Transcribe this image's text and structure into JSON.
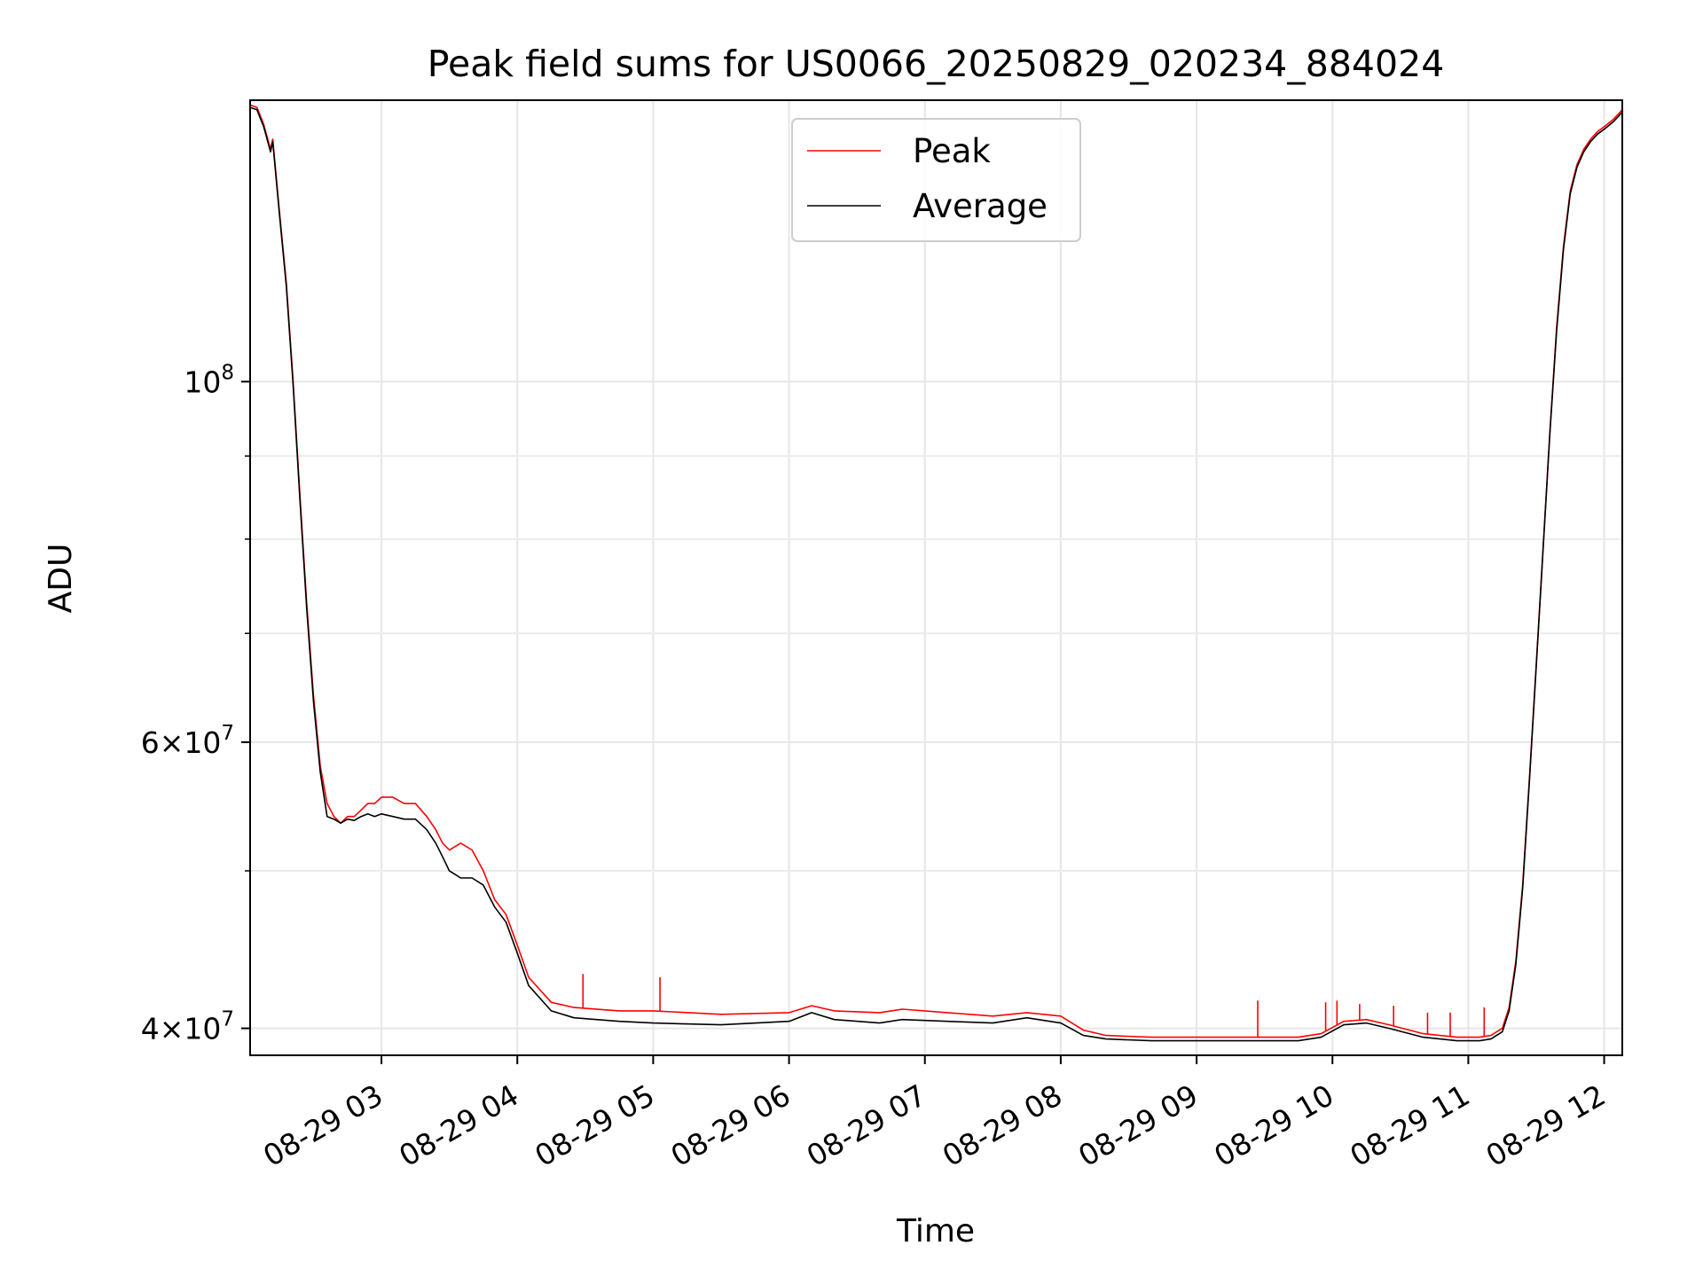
{
  "chart_data": {
    "type": "line",
    "title": "Peak field sums for US0066_20250829_020234_884024",
    "xlabel": "Time",
    "ylabel": "ADU",
    "yscale": "log",
    "grid": true,
    "legend_position": "top-center",
    "x_ticks": [
      "08-29 03",
      "08-29 04",
      "08-29 05",
      "08-29 06",
      "08-29 07",
      "08-29 08",
      "08-29 09",
      "08-29 10",
      "08-29 11",
      "08-29 12"
    ],
    "y_ticks": [
      {
        "value": 40000000,
        "base": "4×10",
        "exp": "7"
      },
      {
        "value": 60000000,
        "base": "6×10",
        "exp": "7"
      },
      {
        "value": 100000000,
        "base": "10",
        "exp": "8"
      }
    ],
    "xlim": [
      "2025-08-29 02:02",
      "2025-08-29 12:08"
    ],
    "ylim": [
      38500000,
      149000000
    ],
    "series": [
      {
        "name": "Peak",
        "color": "#ff0000",
        "x": [
          "2025-08-29 02:02",
          "2025-08-29 02:05",
          "2025-08-29 02:08",
          "2025-08-29 02:11",
          "2025-08-29 02:12",
          "2025-08-29 02:15",
          "2025-08-29 02:18",
          "2025-08-29 02:21",
          "2025-08-29 02:24",
          "2025-08-29 02:27",
          "2025-08-29 02:30",
          "2025-08-29 02:33",
          "2025-08-29 02:36",
          "2025-08-29 02:39",
          "2025-08-29 02:42",
          "2025-08-29 02:45",
          "2025-08-29 02:48",
          "2025-08-29 02:51",
          "2025-08-29 02:54",
          "2025-08-29 02:57",
          "2025-08-29 03:00",
          "2025-08-29 03:05",
          "2025-08-29 03:10",
          "2025-08-29 03:15",
          "2025-08-29 03:20",
          "2025-08-29 03:24",
          "2025-08-29 03:27",
          "2025-08-29 03:30",
          "2025-08-29 03:35",
          "2025-08-29 03:40",
          "2025-08-29 03:45",
          "2025-08-29 03:50",
          "2025-08-29 03:55",
          "2025-08-29 04:00",
          "2025-08-29 04:05",
          "2025-08-29 04:15",
          "2025-08-29 04:25",
          "2025-08-29 04:45",
          "2025-08-29 05:00",
          "2025-08-29 05:30",
          "2025-08-29 06:00",
          "2025-08-29 06:10",
          "2025-08-29 06:20",
          "2025-08-29 06:40",
          "2025-08-29 06:50",
          "2025-08-29 07:10",
          "2025-08-29 07:30",
          "2025-08-29 07:45",
          "2025-08-29 08:00",
          "2025-08-29 08:10",
          "2025-08-29 08:20",
          "2025-08-29 08:40",
          "2025-08-29 09:00",
          "2025-08-29 09:30",
          "2025-08-29 09:45",
          "2025-08-29 09:55",
          "2025-08-29 10:05",
          "2025-08-29 10:15",
          "2025-08-29 10:25",
          "2025-08-29 10:40",
          "2025-08-29 10:55",
          "2025-08-29 11:05",
          "2025-08-29 11:10",
          "2025-08-29 11:15",
          "2025-08-29 11:18",
          "2025-08-29 11:21",
          "2025-08-29 11:24",
          "2025-08-29 11:27",
          "2025-08-29 11:30",
          "2025-08-29 11:33",
          "2025-08-29 11:36",
          "2025-08-29 11:39",
          "2025-08-29 11:42",
          "2025-08-29 11:45",
          "2025-08-29 11:48",
          "2025-08-29 11:51",
          "2025-08-29 11:54",
          "2025-08-29 11:57",
          "2025-08-29 12:00",
          "2025-08-29 12:04",
          "2025-08-29 12:08"
        ],
        "y": [
          148000000,
          147500000,
          144000000,
          139000000,
          141000000,
          127000000,
          115000000,
          100000000,
          85000000,
          73000000,
          64000000,
          58000000,
          55000000,
          54000000,
          53500000,
          54000000,
          54000000,
          54500000,
          55000000,
          55000000,
          55500000,
          55500000,
          55000000,
          55000000,
          54000000,
          53000000,
          52000000,
          51500000,
          52000000,
          51500000,
          50000000,
          48000000,
          47000000,
          45000000,
          43000000,
          41500000,
          41200000,
          41000000,
          41000000,
          40800000,
          40900000,
          41300000,
          41000000,
          40900000,
          41100000,
          40900000,
          40700000,
          40900000,
          40700000,
          39900000,
          39600000,
          39500000,
          39500000,
          39500000,
          39500000,
          39700000,
          40400000,
          40500000,
          40200000,
          39700000,
          39500000,
          39500000,
          39600000,
          40000000,
          41200000,
          44000000,
          49000000,
          57000000,
          67000000,
          79000000,
          93000000,
          108000000,
          121000000,
          131000000,
          136000000,
          139000000,
          141000000,
          142500000,
          143500000,
          145000000,
          147000000
        ],
        "spikes": [
          {
            "x": "2025-08-29 04:29",
            "y": 43200000
          },
          {
            "x": "2025-08-29 05:03",
            "y": 43000000
          },
          {
            "x": "2025-08-29 09:27",
            "y": 41600000
          },
          {
            "x": "2025-08-29 09:57",
            "y": 41500000
          },
          {
            "x": "2025-08-29 10:02",
            "y": 41600000
          },
          {
            "x": "2025-08-29 10:12",
            "y": 41400000
          },
          {
            "x": "2025-08-29 10:27",
            "y": 41300000
          },
          {
            "x": "2025-08-29 10:42",
            "y": 40900000
          },
          {
            "x": "2025-08-29 10:52",
            "y": 40900000
          },
          {
            "x": "2025-08-29 11:07",
            "y": 41200000
          }
        ]
      },
      {
        "name": "Average",
        "color": "#000000",
        "x": [
          "2025-08-29 02:02",
          "2025-08-29 02:05",
          "2025-08-29 02:08",
          "2025-08-29 02:11",
          "2025-08-29 02:12",
          "2025-08-29 02:15",
          "2025-08-29 02:18",
          "2025-08-29 02:21",
          "2025-08-29 02:24",
          "2025-08-29 02:27",
          "2025-08-29 02:30",
          "2025-08-29 02:33",
          "2025-08-29 02:36",
          "2025-08-29 02:39",
          "2025-08-29 02:42",
          "2025-08-29 02:45",
          "2025-08-29 02:48",
          "2025-08-29 02:51",
          "2025-08-29 02:54",
          "2025-08-29 02:57",
          "2025-08-29 03:00",
          "2025-08-29 03:05",
          "2025-08-29 03:10",
          "2025-08-29 03:15",
          "2025-08-29 03:20",
          "2025-08-29 03:24",
          "2025-08-29 03:27",
          "2025-08-29 03:30",
          "2025-08-29 03:35",
          "2025-08-29 03:40",
          "2025-08-29 03:45",
          "2025-08-29 03:50",
          "2025-08-29 03:55",
          "2025-08-29 04:00",
          "2025-08-29 04:05",
          "2025-08-29 04:15",
          "2025-08-29 04:25",
          "2025-08-29 04:45",
          "2025-08-29 05:00",
          "2025-08-29 05:30",
          "2025-08-29 06:00",
          "2025-08-29 06:10",
          "2025-08-29 06:20",
          "2025-08-29 06:40",
          "2025-08-29 06:50",
          "2025-08-29 07:10",
          "2025-08-29 07:30",
          "2025-08-29 07:45",
          "2025-08-29 08:00",
          "2025-08-29 08:10",
          "2025-08-29 08:20",
          "2025-08-29 08:40",
          "2025-08-29 09:00",
          "2025-08-29 09:30",
          "2025-08-29 09:45",
          "2025-08-29 09:55",
          "2025-08-29 10:05",
          "2025-08-29 10:15",
          "2025-08-29 10:25",
          "2025-08-29 10:40",
          "2025-08-29 10:55",
          "2025-08-29 11:05",
          "2025-08-29 11:10",
          "2025-08-29 11:15",
          "2025-08-29 11:18",
          "2025-08-29 11:21",
          "2025-08-29 11:24",
          "2025-08-29 11:27",
          "2025-08-29 11:30",
          "2025-08-29 11:33",
          "2025-08-29 11:36",
          "2025-08-29 11:39",
          "2025-08-29 11:42",
          "2025-08-29 11:45",
          "2025-08-29 11:48",
          "2025-08-29 11:51",
          "2025-08-29 11:54",
          "2025-08-29 11:57",
          "2025-08-29 12:00",
          "2025-08-29 12:04",
          "2025-08-29 12:08"
        ],
        "y": [
          147500000,
          147000000,
          143500000,
          138500000,
          140500000,
          126500000,
          114500000,
          99500000,
          84500000,
          72500000,
          63500000,
          57500000,
          54000000,
          53800000,
          53500000,
          53800000,
          53700000,
          54000000,
          54200000,
          54000000,
          54200000,
          54000000,
          53800000,
          53800000,
          53000000,
          52000000,
          51000000,
          50000000,
          49500000,
          49500000,
          49000000,
          47500000,
          46500000,
          44500000,
          42500000,
          41000000,
          40600000,
          40400000,
          40300000,
          40200000,
          40400000,
          40900000,
          40500000,
          40300000,
          40500000,
          40400000,
          40300000,
          40600000,
          40300000,
          39600000,
          39400000,
          39300000,
          39300000,
          39300000,
          39300000,
          39500000,
          40200000,
          40300000,
          40000000,
          39500000,
          39300000,
          39300000,
          39400000,
          39800000,
          41000000,
          43800000,
          48800000,
          56800000,
          66800000,
          78800000,
          92800000,
          107500000,
          120500000,
          130500000,
          135500000,
          138500000,
          140500000,
          142000000,
          143000000,
          144500000,
          146500000
        ]
      }
    ]
  }
}
